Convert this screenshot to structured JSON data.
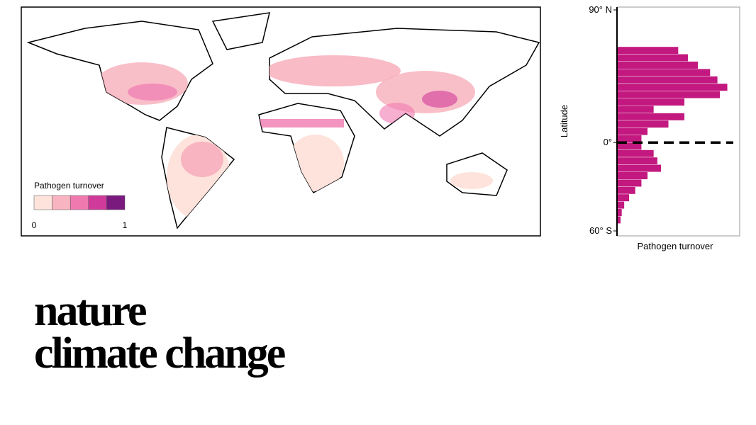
{
  "map_legend": {
    "title": "Pathogen turnover",
    "colors": [
      "#fde3dc",
      "#f8b4c0",
      "#f07ab0",
      "#d03a9a",
      "#7a1a7f"
    ],
    "ticks": [
      0,
      1
    ]
  },
  "chart_data": {
    "type": "histogram",
    "orientation": "horizontal",
    "xlabel": "Pathogen turnover",
    "ylabel": "Latitude",
    "color": "#c2187f",
    "bins": [
      65,
      60,
      55,
      50,
      45,
      40,
      35,
      30,
      25,
      20,
      15,
      10,
      5,
      0,
      -5,
      -10,
      -15,
      -20,
      -25,
      -30,
      -35,
      -40,
      -45,
      -50,
      -55
    ],
    "values": [
      0.5,
      0.58,
      0.66,
      0.76,
      0.82,
      0.9,
      0.84,
      0.55,
      0.3,
      0.55,
      0.42,
      0.25,
      0.2,
      0.2,
      0.3,
      0.33,
      0.36,
      0.25,
      0.2,
      0.15,
      0.1,
      0.06,
      0.04,
      0.03
    ],
    "xlim": [
      0,
      1
    ],
    "ylim": [
      -60,
      90
    ],
    "yticks": [
      {
        "value": 90,
        "label": "90° N"
      },
      {
        "value": 0,
        "label": "0°"
      },
      {
        "value": -60,
        "label": "60° S"
      }
    ],
    "equator_line": true
  },
  "brand": {
    "line1": "nature",
    "line2": "climate change"
  }
}
